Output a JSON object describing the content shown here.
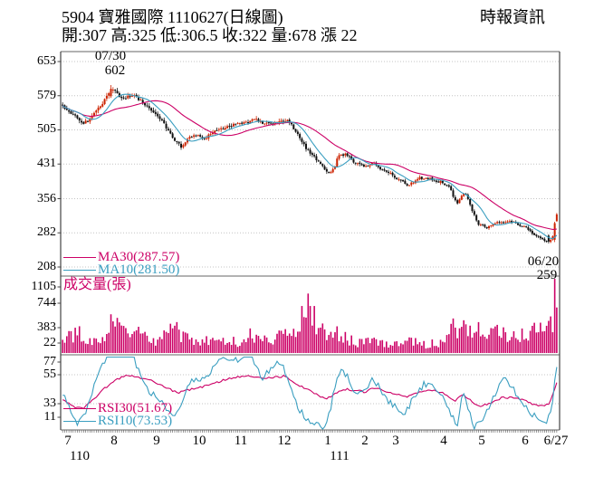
{
  "header": {
    "title": "5904 寶雅國際 1110627(日線圖)",
    "source": "時報資訊",
    "quote_line": "開:307 高:325 低:306.5 收:322 量:678 漲 22"
  },
  "legends": {
    "ma30": "MA30(287.57)",
    "ma10": "MA10(281.50)",
    "volume_title": "成交量(張)",
    "rsi30": "RSI30(51.67)",
    "rsi10": "RSI10(73.53)"
  },
  "annotations": {
    "peak_date": "07/30",
    "peak_value": "602",
    "trough_date": "06/20",
    "trough_value": "259"
  },
  "colors": {
    "magenta": "#cc0066",
    "cyan": "#3a9ec0",
    "candle_up": "#cc2200",
    "candle_down": "#111111",
    "grid": "#c4c4c4",
    "frame": "#666666",
    "text": "#000000"
  },
  "chart_data": [
    {
      "type": "candlestick",
      "title": "5904 寶雅國際 daily price (ROC year 110/7 - 111/6/27)",
      "ylim": [
        208,
        653
      ],
      "yticks": [
        653,
        579,
        505,
        431,
        356,
        282,
        208
      ],
      "xticks": [
        "7",
        "8",
        "9",
        "10",
        "11",
        "12",
        "1",
        "2",
        "3",
        "4",
        "5",
        "6",
        "6/27"
      ],
      "year_labels": [
        {
          "label": "110",
          "under_month": "7"
        },
        {
          "label": "111",
          "under_month": "1"
        }
      ],
      "last_day": {
        "date": "1110627",
        "open": 307,
        "high": 325,
        "low": 306.5,
        "close": 322,
        "volume": 678,
        "change": 22
      },
      "peak": {
        "date": "07/30",
        "high": 602
      },
      "trough": {
        "date": "06/20",
        "low": 259
      },
      "ma30_last": 287.57,
      "ma10_last": 281.5,
      "close_path_sampled": [
        [
          0,
          556
        ],
        [
          0.2,
          540
        ],
        [
          0.4,
          519
        ],
        [
          0.55,
          528
        ],
        [
          0.75,
          558
        ],
        [
          0.9,
          585
        ],
        [
          0.97,
          594
        ],
        [
          1.1,
          580
        ],
        [
          1.25,
          572
        ],
        [
          1.45,
          583
        ],
        [
          1.65,
          566
        ],
        [
          1.85,
          550
        ],
        [
          2.05,
          533
        ],
        [
          2.25,
          506
        ],
        [
          2.45,
          478
        ],
        [
          2.6,
          468
        ],
        [
          2.8,
          491
        ],
        [
          3,
          492
        ],
        [
          3.15,
          487
        ],
        [
          3.35,
          502
        ],
        [
          3.65,
          512
        ],
        [
          3.95,
          518
        ],
        [
          4.15,
          522
        ],
        [
          4.35,
          528
        ],
        [
          4.55,
          517
        ],
        [
          4.75,
          521
        ],
        [
          4.95,
          527
        ],
        [
          5.1,
          524
        ],
        [
          5.25,
          503
        ],
        [
          5.5,
          466
        ],
        [
          5.75,
          440
        ],
        [
          5.95,
          418
        ],
        [
          6.1,
          410
        ],
        [
          6.3,
          450
        ],
        [
          6.5,
          452
        ],
        [
          6.7,
          437
        ],
        [
          6.9,
          428
        ],
        [
          7.1,
          426
        ],
        [
          7.3,
          433
        ],
        [
          7.55,
          420
        ],
        [
          7.8,
          412
        ],
        [
          8.05,
          399
        ],
        [
          8.25,
          386
        ],
        [
          8.5,
          401
        ],
        [
          8.75,
          398
        ],
        [
          8.95,
          391
        ],
        [
          9.15,
          380
        ],
        [
          9.35,
          344
        ],
        [
          9.55,
          371
        ],
        [
          9.7,
          341
        ],
        [
          9.9,
          303
        ],
        [
          10.1,
          294
        ],
        [
          10.35,
          302
        ],
        [
          10.6,
          308
        ],
        [
          10.85,
          299
        ],
        [
          11.05,
          291
        ],
        [
          11.25,
          279
        ],
        [
          11.5,
          269
        ],
        [
          11.63,
          263
        ],
        [
          11.78,
          273
        ],
        [
          11.9,
          322
        ]
      ]
    },
    {
      "type": "bar",
      "title": "成交量(張)",
      "yticks": [
        1105,
        744,
        383,
        22
      ],
      "max_volume": 1105,
      "last_volume": 678,
      "volume_path_sampled": [
        [
          0,
          180
        ],
        [
          0.3,
          300
        ],
        [
          0.6,
          170
        ],
        [
          0.8,
          280
        ],
        [
          0.95,
          420
        ],
        [
          1.1,
          360
        ],
        [
          1.3,
          280
        ],
        [
          1.5,
          400
        ],
        [
          1.7,
          240
        ],
        [
          1.9,
          170
        ],
        [
          2.1,
          200
        ],
        [
          2.4,
          340
        ],
        [
          2.6,
          270
        ],
        [
          2.8,
          190
        ],
        [
          3,
          150
        ],
        [
          3.3,
          180
        ],
        [
          3.6,
          210
        ],
        [
          3.9,
          150
        ],
        [
          4.2,
          250
        ],
        [
          4.5,
          190
        ],
        [
          4.8,
          210
        ],
        [
          5,
          270
        ],
        [
          5.2,
          340
        ],
        [
          5.57,
          890
        ],
        [
          5.7,
          520
        ],
        [
          5.9,
          290
        ],
        [
          6.1,
          240
        ],
        [
          6.3,
          310
        ],
        [
          6.5,
          200
        ],
        [
          6.8,
          150
        ],
        [
          7,
          170
        ],
        [
          7.3,
          210
        ],
        [
          7.6,
          150
        ],
        [
          8,
          130
        ],
        [
          8.3,
          170
        ],
        [
          8.6,
          120
        ],
        [
          8.9,
          150
        ],
        [
          9.1,
          230
        ],
        [
          9.3,
          400
        ],
        [
          9.5,
          360
        ],
        [
          9.7,
          290
        ],
        [
          9.9,
          340
        ],
        [
          10.2,
          250
        ],
        [
          10.5,
          310
        ],
        [
          10.8,
          270
        ],
        [
          11,
          290
        ],
        [
          11.2,
          340
        ],
        [
          11.45,
          310
        ],
        [
          11.6,
          370
        ],
        [
          11.75,
          450
        ],
        [
          11.83,
          1105
        ],
        [
          11.9,
          678
        ]
      ]
    },
    {
      "type": "line",
      "title": "RSI",
      "yticks": [
        77,
        55,
        33,
        11
      ],
      "series": [
        {
          "name": "RSI30",
          "last": 51.67,
          "points": [
            [
              0,
              37
            ],
            [
              0.2,
              31
            ],
            [
              0.4,
              29
            ],
            [
              0.6,
              36
            ],
            [
              0.8,
              44
            ],
            [
              1,
              50
            ],
            [
              1.3,
              55
            ],
            [
              1.6,
              53
            ],
            [
              1.9,
              50
            ],
            [
              2.2,
              46
            ],
            [
              2.5,
              41
            ],
            [
              2.8,
              44
            ],
            [
              3,
              45
            ],
            [
              3.3,
              48
            ],
            [
              3.6,
              51
            ],
            [
              3.9,
              53
            ],
            [
              4.2,
              54
            ],
            [
              4.5,
              52
            ],
            [
              4.8,
              53
            ],
            [
              5,
              54
            ],
            [
              5.2,
              50
            ],
            [
              5.5,
              44
            ],
            [
              5.8,
              39
            ],
            [
              6,
              37
            ],
            [
              6.3,
              42
            ],
            [
              6.5,
              44
            ],
            [
              6.8,
              43
            ],
            [
              7,
              42
            ],
            [
              7.3,
              45
            ],
            [
              7.6,
              43
            ],
            [
              8,
              40
            ],
            [
              8.2,
              38
            ],
            [
              8.5,
              42
            ],
            [
              8.8,
              43
            ],
            [
              9,
              41
            ],
            [
              9.3,
              35
            ],
            [
              9.5,
              40
            ],
            [
              9.7,
              36
            ],
            [
              9.9,
              31
            ],
            [
              10.2,
              33
            ],
            [
              10.5,
              38
            ],
            [
              10.8,
              37
            ],
            [
              11,
              35
            ],
            [
              11.2,
              33
            ],
            [
              11.5,
              31
            ],
            [
              11.65,
              33
            ],
            [
              11.8,
              42
            ],
            [
              11.9,
              51.67
            ]
          ]
        },
        {
          "name": "RSI10",
          "last": 73.53,
          "points": [
            [
              0,
              42
            ],
            [
              0.15,
              30
            ],
            [
              0.3,
              18
            ],
            [
              0.45,
              25
            ],
            [
              0.6,
              45
            ],
            [
              0.75,
              60
            ],
            [
              0.9,
              72
            ],
            [
              1,
              80
            ],
            [
              1.1,
              83
            ],
            [
              1.25,
              68
            ],
            [
              1.4,
              75
            ],
            [
              1.55,
              60
            ],
            [
              1.7,
              48
            ],
            [
              1.85,
              42
            ],
            [
              2,
              38
            ],
            [
              2.2,
              30
            ],
            [
              2.4,
              22
            ],
            [
              2.55,
              28
            ],
            [
              2.7,
              45
            ],
            [
              2.85,
              52
            ],
            [
              3,
              48
            ],
            [
              3.2,
              55
            ],
            [
              3.4,
              62
            ],
            [
              3.6,
              70
            ],
            [
              3.8,
              65
            ],
            [
              4,
              68
            ],
            [
              4.2,
              72
            ],
            [
              4.35,
              60
            ],
            [
              4.5,
              52
            ],
            [
              4.65,
              58
            ],
            [
              4.8,
              62
            ],
            [
              4.95,
              65
            ],
            [
              5.1,
              48
            ],
            [
              5.3,
              30
            ],
            [
              5.5,
              22
            ],
            [
              5.7,
              18
            ],
            [
              5.9,
              15
            ],
            [
              6.05,
              25
            ],
            [
              6.2,
              48
            ],
            [
              6.35,
              58
            ],
            [
              6.5,
              55
            ],
            [
              6.65,
              45
            ],
            [
              6.8,
              40
            ],
            [
              7,
              42
            ],
            [
              7.2,
              52
            ],
            [
              7.4,
              48
            ],
            [
              7.6,
              38
            ],
            [
              7.8,
              35
            ],
            [
              8,
              30
            ],
            [
              8.2,
              25
            ],
            [
              8.4,
              40
            ],
            [
              8.6,
              48
            ],
            [
              8.8,
              45
            ],
            [
              9,
              38
            ],
            [
              9.2,
              25
            ],
            [
              9.35,
              15
            ],
            [
              9.5,
              45
            ],
            [
              9.65,
              30
            ],
            [
              9.8,
              15
            ],
            [
              9.95,
              18
            ],
            [
              10.1,
              25
            ],
            [
              10.3,
              40
            ],
            [
              10.5,
              52
            ],
            [
              10.7,
              45
            ],
            [
              10.9,
              35
            ],
            [
              11.1,
              28
            ],
            [
              11.3,
              22
            ],
            [
              11.5,
              18
            ],
            [
              11.63,
              20
            ],
            [
              11.75,
              35
            ],
            [
              11.85,
              55
            ],
            [
              11.9,
              73.53
            ]
          ]
        }
      ]
    }
  ]
}
